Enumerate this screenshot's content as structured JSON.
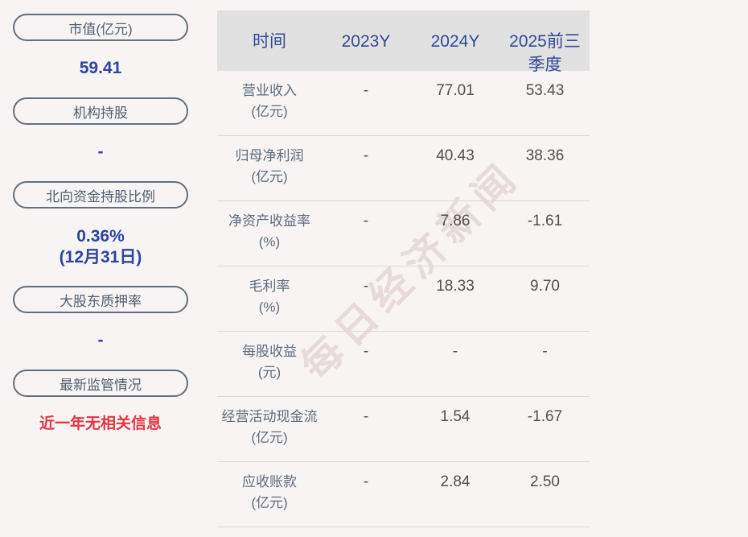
{
  "watermark": {
    "text": "每日经济新闻"
  },
  "colors": {
    "page_background": "#f8f4f4",
    "header_background": "#e2e1e1",
    "header_text": "#2e4a99",
    "pill_border": "#60707f",
    "pill_text": "#4f6070",
    "value_blue": "#2a44a0",
    "value_red": "#e4353f",
    "body_text": "#4f4f4f",
    "label_text": "#5c6b7b"
  },
  "sidebar": {
    "items": [
      {
        "label": "市值(亿元)",
        "value": "59.41"
      },
      {
        "label": "机构持股",
        "value": "-"
      },
      {
        "label": "北向资金持股比例",
        "value": "0.36%",
        "value_sub": "(12月31日)"
      },
      {
        "label": "大股东质押率",
        "value": "-"
      },
      {
        "label": "最新监管情况",
        "value": "近一年无相关信息"
      }
    ]
  },
  "table": {
    "columns": [
      "时间",
      "2023Y",
      "2024Y",
      "2025前三季度"
    ],
    "rows": [
      {
        "name": "营业收入",
        "unit": "(亿元)",
        "v2023": "-",
        "v2024": "77.01",
        "v2025": "53.43"
      },
      {
        "name": "归母净利润",
        "unit": "(亿元)",
        "v2023": "-",
        "v2024": "40.43",
        "v2025": "38.36"
      },
      {
        "name": "净资产收益率",
        "unit": "(%)",
        "v2023": "-",
        "v2024": "7.86",
        "v2025": "-1.61"
      },
      {
        "name": "毛利率",
        "unit": "(%)",
        "v2023": "-",
        "v2024": "18.33",
        "v2025": "9.70"
      },
      {
        "name": "每股收益",
        "unit": "(元)",
        "v2023": "-",
        "v2024": "-",
        "v2025": "-"
      },
      {
        "name": "经营活动现金流",
        "unit": "(亿元)",
        "v2023": "-",
        "v2024": "1.54",
        "v2025": "-1.67"
      },
      {
        "name": "应收账款",
        "unit": "(亿元)",
        "v2023": "-",
        "v2024": "2.84",
        "v2025": "2.50"
      }
    ]
  }
}
